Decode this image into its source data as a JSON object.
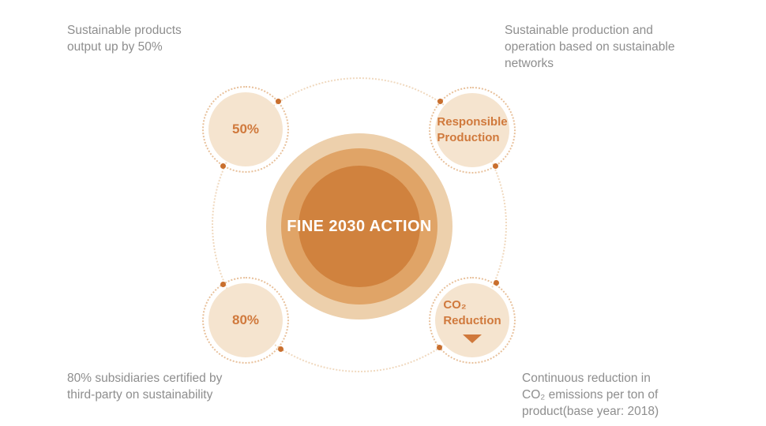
{
  "colors": {
    "orbit_dotted": "#f0d9bf",
    "ring_outer": "#edd0ac",
    "ring_middle": "#e0a467",
    "ring_inner": "#d0823e",
    "satellite_fill": "#f5e4cf",
    "satellite_dotted": "#e8c09a",
    "connector_dot": "#c96f2e",
    "accent_text": "#d0793c",
    "caption_text": "#8e8e8e",
    "title_text": "#ffffff"
  },
  "center": {
    "title": "FINE 2030 ACTION"
  },
  "satellites": {
    "top_left": {
      "label": "50%"
    },
    "top_right": {
      "lines": [
        "Responsible",
        "Production"
      ]
    },
    "bottom_left": {
      "label": "80%"
    },
    "bottom_right": {
      "lines": [
        "CO₂",
        "Reduction"
      ],
      "arrow": "down-triangle"
    }
  },
  "captions": {
    "top_left": [
      "Sustainable products",
      "output up by 50%"
    ],
    "top_right": [
      "Sustainable production and",
      "operation based on sustainable",
      "networks"
    ],
    "bottom_left": [
      "80% subsidiaries certified by",
      "third-party on sustainability"
    ],
    "bottom_right": [
      "Continuous reduction in",
      "CO₂ emissions per ton of",
      "product(base year: 2018)"
    ]
  }
}
